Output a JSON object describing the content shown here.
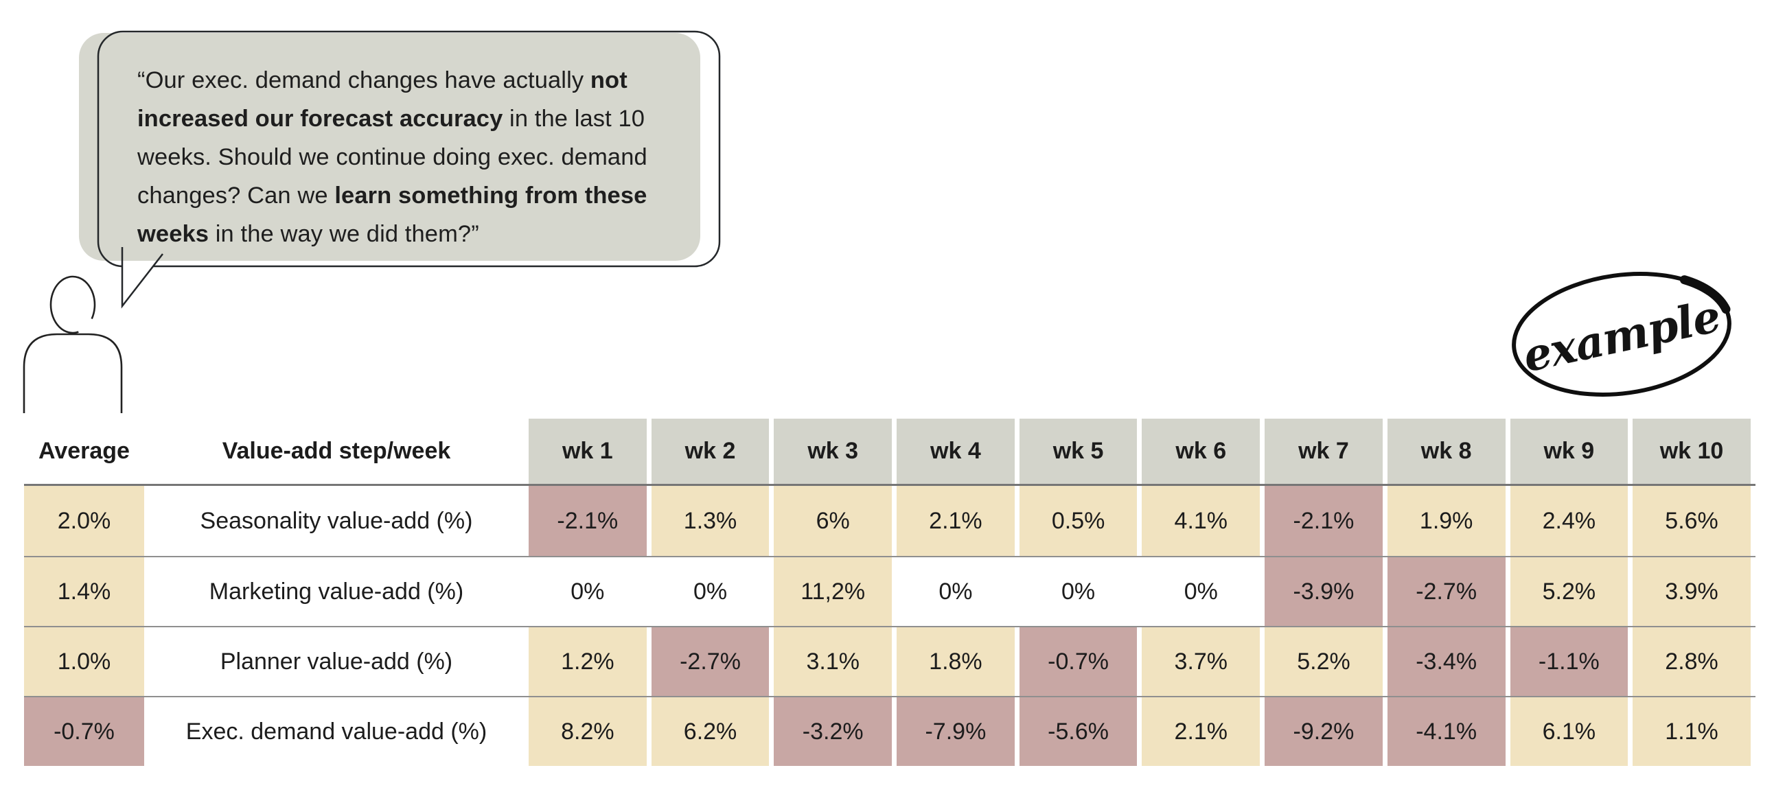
{
  "speech_bubble": {
    "segments": [
      {
        "text": "“Our exec. demand changes have actually ",
        "bold": false
      },
      {
        "text": "not increased our forecast accuracy",
        "bold": true
      },
      {
        "text": " in the last 10 weeks. Should we continue doing exec. demand changes? Can we ",
        "bold": false
      },
      {
        "text": "learn something from these weeks",
        "bold": true
      },
      {
        "text": " in the way we did them?”",
        "bold": false
      }
    ]
  },
  "stamp": {
    "label": "example"
  },
  "table": {
    "average_header": "Average",
    "step_header": "Value-add step/week",
    "week_headers": [
      "wk 1",
      "wk 2",
      "wk 3",
      "wk 4",
      "wk 5",
      "wk 6",
      "wk 7",
      "wk 8",
      "wk 9",
      "wk 10"
    ],
    "rows": [
      {
        "average": "2.0%",
        "label": "Seasonality value-add (%)",
        "values": [
          "-2.1%",
          "1.3%",
          "6%",
          "2.1%",
          "0.5%",
          "4.1%",
          "-2.1%",
          "1.9%",
          "2.4%",
          "5.6%"
        ]
      },
      {
        "average": "1.4%",
        "label": "Marketing value-add (%)",
        "values": [
          "0%",
          "0%",
          "11,2%",
          "0%",
          "0%",
          "0%",
          "-3.9%",
          "-2.7%",
          "5.2%",
          "3.9%"
        ]
      },
      {
        "average": "1.0%",
        "label": "Planner value-add (%)",
        "values": [
          "1.2%",
          "-2.7%",
          "3.1%",
          "1.8%",
          "-0.7%",
          "3.7%",
          "5.2%",
          "-3.4%",
          "-1.1%",
          "2.8%"
        ]
      },
      {
        "average": "-0.7%",
        "label": "Exec. demand value-add (%)",
        "values": [
          "8.2%",
          "6.2%",
          "-3.2%",
          "-7.9%",
          "-5.6%",
          "2.1%",
          "-9.2%",
          "-4.1%",
          "6.1%",
          "1.1%"
        ]
      }
    ]
  },
  "colors": {
    "positive_cell": "#f1e3c0",
    "negative_cell": "#c8a7a4",
    "zero_cell": "#ffffff",
    "header_cell": "#d3d4cb",
    "bubble_bg": "#d6d7ce"
  },
  "chart_data": {
    "type": "heatmap",
    "title": "Forecast value-add by step and week",
    "x": [
      "wk 1",
      "wk 2",
      "wk 3",
      "wk 4",
      "wk 5",
      "wk 6",
      "wk 7",
      "wk 8",
      "wk 9",
      "wk 10"
    ],
    "series": [
      {
        "name": "Seasonality value-add (%)",
        "average": 2.0,
        "values": [
          -2.1,
          1.3,
          6,
          2.1,
          0.5,
          4.1,
          -2.1,
          1.9,
          2.4,
          5.6
        ]
      },
      {
        "name": "Marketing value-add (%)",
        "average": 1.4,
        "values": [
          0,
          0,
          11.2,
          0,
          0,
          0,
          -3.9,
          -2.7,
          5.2,
          3.9
        ]
      },
      {
        "name": "Planner value-add (%)",
        "average": 1.0,
        "values": [
          1.2,
          -2.7,
          3.1,
          1.8,
          -0.7,
          3.7,
          5.2,
          -3.4,
          -1.1,
          2.8
        ]
      },
      {
        "name": "Exec. demand value-add (%)",
        "average": -0.7,
        "values": [
          8.2,
          6.2,
          -3.2,
          -7.9,
          -5.6,
          2.1,
          -9.2,
          -4.1,
          6.1,
          1.1
        ]
      }
    ],
    "legend": "cream = positive value-add, mauve = negative value-add, white = zero",
    "annotation": "“Our exec. demand changes have actually not increased our forecast accuracy in the last 10 weeks. Should we continue doing exec. demand changes? Can we learn something from these weeks in the way we did them?”"
  }
}
